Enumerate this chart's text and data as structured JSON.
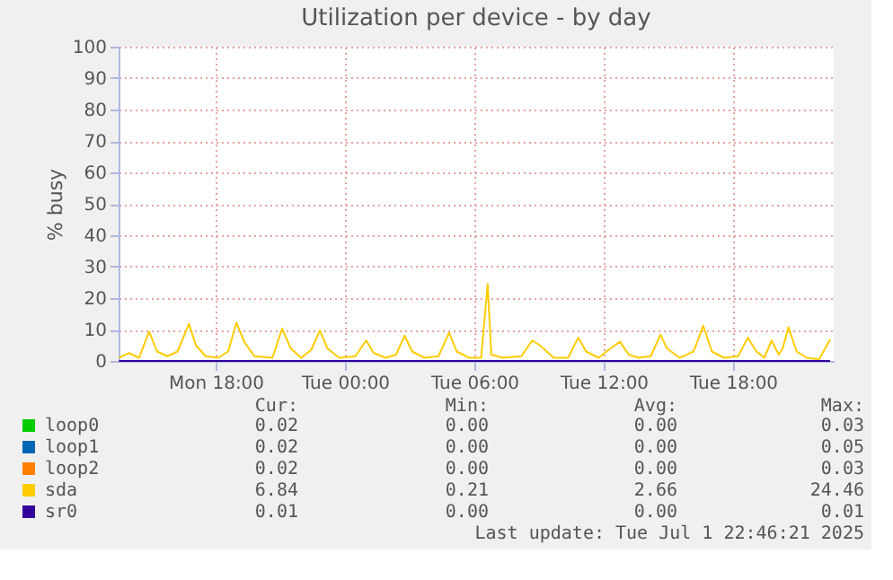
{
  "chart_data": {
    "type": "line",
    "title": "Utilization per device - by day",
    "ylabel": "% busy",
    "xlim": [
      "2025-06-30T13:30",
      "2025-07-01T22:40"
    ],
    "xticks": [
      {
        "value": "2025-06-30T18:00",
        "label": "Mon 18:00"
      },
      {
        "value": "2025-07-01T00:00",
        "label": "Tue 00:00"
      },
      {
        "value": "2025-07-01T06:00",
        "label": "Tue 06:00"
      },
      {
        "value": "2025-07-01T12:00",
        "label": "Tue 12:00"
      },
      {
        "value": "2025-07-01T18:00",
        "label": "Tue 18:00"
      }
    ],
    "ylim": [
      0,
      100
    ],
    "yticks": [
      0,
      10,
      20,
      30,
      40,
      50,
      60,
      70,
      80,
      90,
      100
    ],
    "grid": true,
    "legend": "bottom",
    "series": [
      {
        "name": "loop0",
        "color": "#00cc00"
      },
      {
        "name": "loop1",
        "color": "#0066b3"
      },
      {
        "name": "loop2",
        "color": "#ff8000"
      },
      {
        "name": "sda",
        "color": "#ffcc00",
        "x": [
          "2025-06-30T13:31",
          "2025-06-30T13:59",
          "2025-06-30T14:27",
          "2025-06-30T14:55",
          "2025-06-30T15:17",
          "2025-06-30T15:46",
          "2025-06-30T16:14",
          "2025-06-30T16:46",
          "2025-06-30T17:05",
          "2025-06-30T17:32",
          "2025-06-30T18:07",
          "2025-06-30T18:35",
          "2025-06-30T18:58",
          "2025-06-30T19:20",
          "2025-06-30T19:48",
          "2025-06-30T20:38",
          "2025-06-30T21:05",
          "2025-06-30T21:29",
          "2025-06-30T21:58",
          "2025-06-30T22:26",
          "2025-06-30T22:50",
          "2025-06-30T23:11",
          "2025-06-30T23:44",
          "2025-07-01T00:29",
          "2025-07-01T00:59",
          "2025-07-01T01:20",
          "2025-07-01T01:54",
          "2025-07-01T02:22",
          "2025-07-01T02:46",
          "2025-07-01T03:07",
          "2025-07-01T03:41",
          "2025-07-01T04:20",
          "2025-07-01T04:50",
          "2025-07-01T05:11",
          "2025-07-01T05:45",
          "2025-07-01T06:19",
          "2025-07-01T06:37",
          "2025-07-01T06:47",
          "2025-07-01T07:20",
          "2025-07-01T08:11",
          "2025-07-01T08:41",
          "2025-07-01T09:02",
          "2025-07-01T09:41",
          "2025-07-01T10:21",
          "2025-07-01T10:49",
          "2025-07-01T11:11",
          "2025-07-01T11:46",
          "2025-07-01T12:19",
          "2025-07-01T12:45",
          "2025-07-01T13:10",
          "2025-07-01T13:38",
          "2025-07-01T14:11",
          "2025-07-01T14:38",
          "2025-07-01T14:56",
          "2025-07-01T15:31",
          "2025-07-01T16:10",
          "2025-07-01T16:37",
          "2025-07-01T17:01",
          "2025-07-01T17:35",
          "2025-07-01T18:14",
          "2025-07-01T18:41",
          "2025-07-01T19:05",
          "2025-07-01T19:27",
          "2025-07-01T19:47",
          "2025-07-01T20:07",
          "2025-07-01T20:18",
          "2025-07-01T20:34",
          "2025-07-01T20:57",
          "2025-07-01T21:25",
          "2025-07-01T21:59",
          "2025-07-01T22:30"
        ],
        "values": [
          1.0,
          2.5,
          1.0,
          9.3,
          3.0,
          1.5,
          3.0,
          11.8,
          5.0,
          1.5,
          1.0,
          3.0,
          12.2,
          6.0,
          1.5,
          1.0,
          10.3,
          4.0,
          1.0,
          3.5,
          9.7,
          4.0,
          1.0,
          1.5,
          6.5,
          2.5,
          1.0,
          2.0,
          8.0,
          3.0,
          1.0,
          1.5,
          9.0,
          3.0,
          1.0,
          1.0,
          24.5,
          2.0,
          1.0,
          1.5,
          6.5,
          5.0,
          1.0,
          1.0,
          7.4,
          3.0,
          1.0,
          4.0,
          6.1,
          2.0,
          1.0,
          1.5,
          8.4,
          4.0,
          1.0,
          3.0,
          11.2,
          3.0,
          1.0,
          1.5,
          7.4,
          3.0,
          1.0,
          6.5,
          2.0,
          4.0,
          10.7,
          3.0,
          1.0,
          0.5,
          6.8
        ]
      },
      {
        "name": "sr0",
        "color": "#330099",
        "x": [
          "2025-06-30T13:31",
          "2025-07-01T22:30"
        ],
        "values": [
          0,
          0
        ]
      }
    ],
    "annotations": [
      "Cur:",
      "Min:",
      "Avg:",
      "Max:",
      "0.02",
      "0.00",
      "0.00",
      "0.03",
      "0.02",
      "0.00",
      "0.00",
      "0.05",
      "0.02",
      "0.00",
      "0.00",
      "0.03",
      "6.84",
      "0.21",
      "2.66",
      "24.46",
      "0.01",
      "0.00",
      "0.00",
      "0.01",
      "Last update: Tue Jul  1 22:46:21 2025"
    ]
  }
}
